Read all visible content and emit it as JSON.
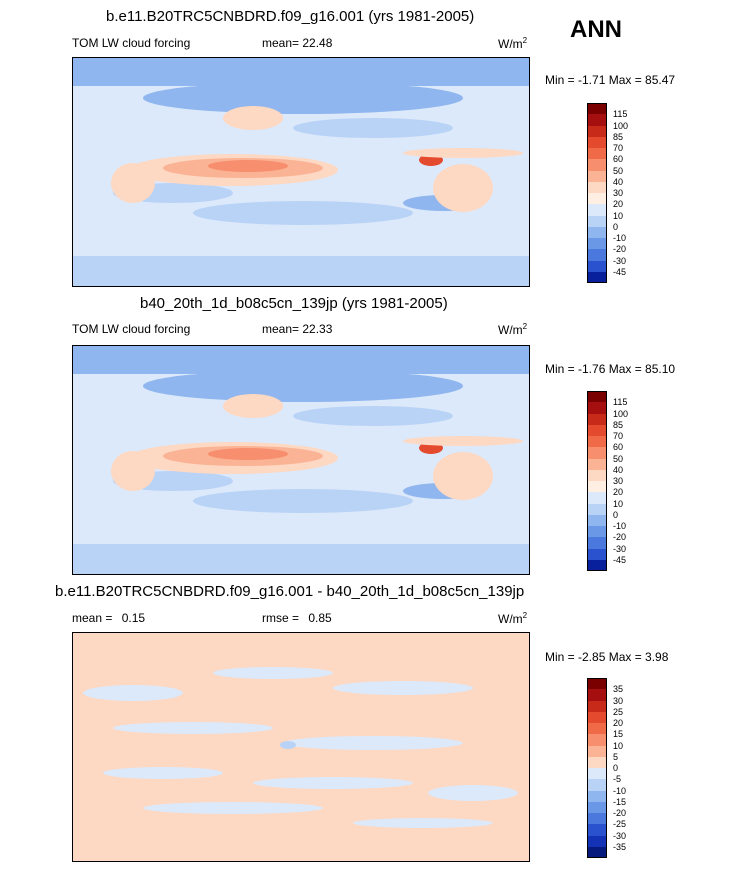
{
  "season": "ANN",
  "units_base": "W/m",
  "units_exp": "2",
  "panels": [
    {
      "title": "b.e11.B20TRC5CNBDRD.f09_g16.001 (yrs 1981-2005)",
      "left_label": "TOM LW cloud forcing",
      "mean_label": "mean=",
      "mean_value": "22.48",
      "minmax": "Min = -1.71 Max = 85.47",
      "kind": "abs",
      "colorbar_labels": [
        "115",
        "100",
        "85",
        "70",
        "60",
        "50",
        "40",
        "30",
        "20",
        "10",
        "0",
        "-10",
        "-20",
        "-30",
        "-45"
      ]
    },
    {
      "title": "b40_20th_1d_b08c5cn_139jp (yrs 1981-2005)",
      "left_label": "TOM LW cloud forcing",
      "mean_label": "mean=",
      "mean_value": "22.33",
      "minmax": "Min = -1.76 Max = 85.10",
      "kind": "abs",
      "colorbar_labels": [
        "115",
        "100",
        "85",
        "70",
        "60",
        "50",
        "40",
        "30",
        "20",
        "10",
        "0",
        "-10",
        "-20",
        "-30",
        "-45"
      ]
    },
    {
      "title": "b.e11.B20TRC5CNBDRD.f09_g16.001 - b40_20th_1d_b08c5cn_139jp",
      "left_label": "mean =",
      "mean_label": "0.15",
      "mean_value": "",
      "rmse_label": "rmse =",
      "rmse_value": "0.85",
      "minmax": "Min = -2.85 Max =  3.98",
      "kind": "diff",
      "colorbar_labels": [
        "35",
        "30",
        "25",
        "20",
        "15",
        "10",
        "5",
        "0",
        "-5",
        "-10",
        "-15",
        "-20",
        "-25",
        "-30",
        "-35"
      ]
    }
  ],
  "colors": {
    "abs_scale": [
      "#7a0000",
      "#a50f0f",
      "#c82a1a",
      "#e34a2e",
      "#f16a48",
      "#f78e6d",
      "#fbb396",
      "#fdd8c2",
      "#ffefe3",
      "#dce9fb",
      "#b9d3f6",
      "#8fb6ee",
      "#6a98e6",
      "#4a78dd",
      "#2a52cf",
      "#08209b"
    ],
    "diff_scale": [
      "#7a0000",
      "#a50f0f",
      "#c82a1a",
      "#e34a2e",
      "#f16a48",
      "#f78e6d",
      "#fbb396",
      "#fdd8c2",
      "#dce9fb",
      "#b9d3f6",
      "#8fb6ee",
      "#6a98e6",
      "#4a78dd",
      "#2a52cf",
      "#1432b5",
      "#061a7e"
    ]
  }
}
